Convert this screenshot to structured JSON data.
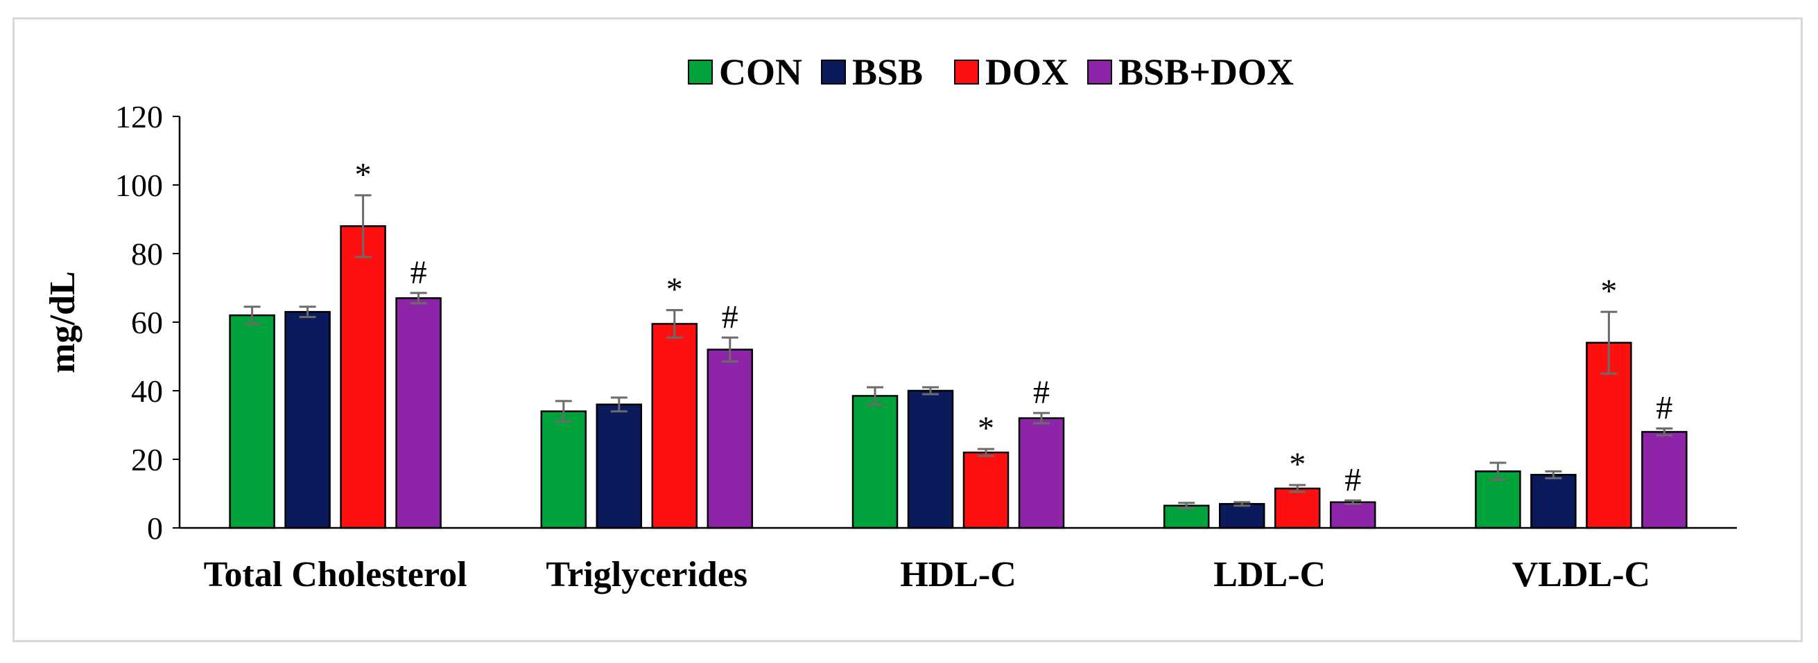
{
  "chart_data": {
    "type": "bar",
    "title": "",
    "xlabel": "",
    "ylabel": "mg/dL",
    "ylim": [
      0,
      120
    ],
    "yticks": [
      0,
      20,
      40,
      60,
      80,
      100,
      120
    ],
    "grid": false,
    "legend_position": "top",
    "categories": [
      "Total Cholesterol",
      "Triglycerides",
      "HDL-C",
      "LDL-C",
      "VLDL-C"
    ],
    "series": [
      {
        "name": "CON",
        "color": "#00a23c",
        "values": [
          62,
          34,
          38.5,
          6.5,
          16.5
        ],
        "errors": [
          2.5,
          3,
          2.5,
          0.8,
          2.5
        ],
        "annotations": [
          "",
          "",
          "",
          "",
          ""
        ]
      },
      {
        "name": "BSB",
        "color": "#0a1a5c",
        "values": [
          63,
          36,
          40,
          7,
          15.5
        ],
        "errors": [
          1.5,
          2,
          1,
          0.5,
          1
        ],
        "annotations": [
          "",
          "",
          "",
          "",
          ""
        ]
      },
      {
        "name": "DOX",
        "color": "#ff0f0f",
        "values": [
          88,
          59.5,
          22,
          11.5,
          54
        ],
        "errors": [
          9,
          4,
          1,
          1,
          9
        ],
        "annotations": [
          "*",
          "*",
          "*",
          "*",
          "*"
        ]
      },
      {
        "name": "BSB+DOX",
        "color": "#8e24a8",
        "values": [
          67,
          52,
          32,
          7.5,
          28
        ],
        "errors": [
          1.5,
          3.5,
          1.5,
          0.5,
          1
        ],
        "annotations": [
          "#",
          "#",
          "#",
          "#",
          "#"
        ]
      }
    ]
  }
}
